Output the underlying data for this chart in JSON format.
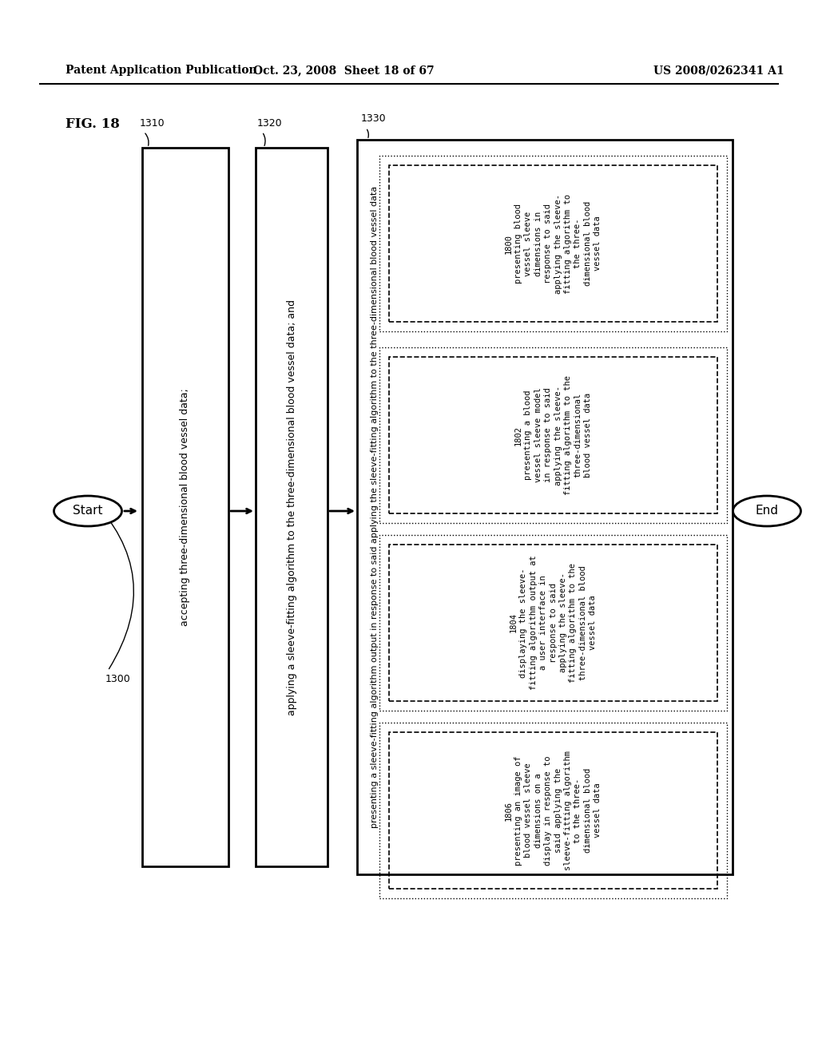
{
  "header_left": "Patent Application Publication",
  "header_mid": "Oct. 23, 2008  Sheet 18 of 67",
  "header_right": "US 2008/0262341 A1",
  "fig_label": "FIG. 18",
  "bg_color": "#ffffff",
  "text_color": "#000000",
  "start_label": "Start",
  "end_label": "End",
  "box1310_label": "1310",
  "box1320_label": "1320",
  "box1330_label": "1330",
  "step1310_text": "accepting three-dimensional blood vessel data;",
  "step1320_text": "applying a sleeve-fitting algorithm to the three-dimensional blood vessel data; and",
  "step1330_title": "presenting a sleeve-fitting algorithm output in response to said applying the sleeve-fitting algorithm to the three-dimensional blood vessel data",
  "box1800_label": "1800",
  "box1800_text": "presenting blood\nvessel sleeve\ndimensions in\nresponse to said\napplying the sleeve-\nfitting algorithm to\nthe three-\ndimensional blood\nvessel data",
  "box1802_label": "1802",
  "box1802_text": "presenting a blood\nvessel sleeve model\nin response to said\napplying the sleeve-\nfitting algorithm to the\nthree-dimensional\nblood vessel data",
  "box1804_label": "1804",
  "box1804_text": "displaying the sleeve-\nfitting algorithm output at\na user interface in\nresponse to said\napplying the sleeve-\nfitting algorithm to the\nthree-dimensional blood\nvessel data",
  "box1806_label": "1806",
  "box1806_text": "presenting an image of\nblood vessel sleeve\ndimensions on a\ndisplay in response to\nsaid applying the\nsleeve-fitting algorithm\nto the three-\ndimensional blood\nvessel data"
}
